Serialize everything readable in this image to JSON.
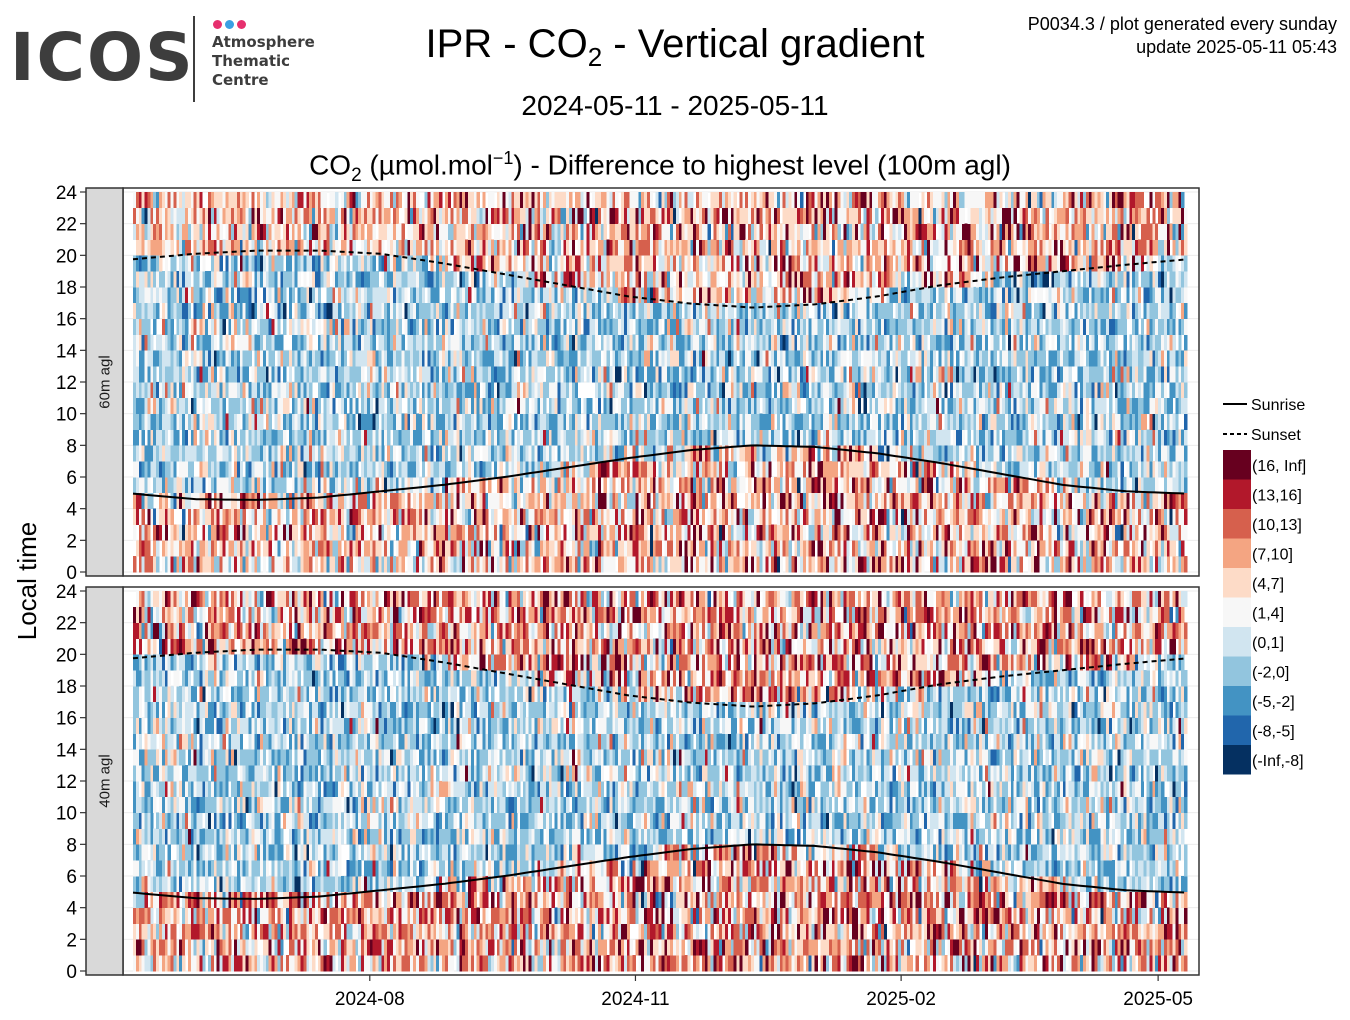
{
  "logo": {
    "text": "ICOS",
    "subtitle_lines": [
      "Atmosphere",
      "Thematic",
      "Centre"
    ],
    "dot_colors": [
      "#e6306e",
      "#3aa0e3",
      "#e6306e"
    ]
  },
  "header": {
    "title_main": "IPR - CO",
    "title_sub": "2",
    "title_rest": " - Vertical gradient",
    "date_range": "2024-05-11 - 2025-05-11",
    "subtitle_co": "CO",
    "subtitle_co_sub": "2",
    "subtitle_unit_pre": " (µmol.mol",
    "subtitle_unit_sup": "−1",
    "subtitle_rest": ") - Difference to highest level (100m agl)",
    "meta_line1": "P0034.3 / plot generated every sunday",
    "meta_line2": "update  2025-05-11 05:43"
  },
  "chart_data": {
    "type": "heatmap",
    "x_range": [
      "2024-05-11",
      "2025-05-11"
    ],
    "y_label": "Local time",
    "y_range": [
      0,
      24
    ],
    "y_ticks": [
      "0",
      "2",
      "4",
      "6",
      "8",
      "10",
      "12",
      "14",
      "16",
      "18",
      "20",
      "22",
      "24"
    ],
    "x_ticks": [
      {
        "date": "2024-08-01",
        "label": "2024-08"
      },
      {
        "date": "2024-11-01",
        "label": "2024-11"
      },
      {
        "date": "2025-02-01",
        "label": "2025-02"
      },
      {
        "date": "2025-05-01",
        "label": "2025-05"
      }
    ],
    "panels": [
      "60m agl",
      "40m agl"
    ],
    "sun_lines": [
      {
        "name": "Sunrise",
        "style": "solid",
        "hours": [
          [
            0,
            4.95
          ],
          [
            1,
            4.6
          ],
          [
            2,
            4.55
          ],
          [
            3,
            4.7
          ],
          [
            4,
            5.1
          ],
          [
            5,
            5.5
          ],
          [
            6,
            6.0
          ],
          [
            7,
            6.6
          ],
          [
            8,
            7.2
          ],
          [
            9,
            7.7
          ],
          [
            10,
            8.0
          ],
          [
            11,
            7.9
          ],
          [
            12,
            7.5
          ],
          [
            13,
            6.9
          ],
          [
            14,
            6.2
          ],
          [
            15,
            5.5
          ],
          [
            16,
            5.1
          ],
          [
            17,
            4.95
          ]
        ]
      },
      {
        "name": "Sunset",
        "style": "dashed",
        "hours": [
          [
            0,
            19.75
          ],
          [
            1,
            20.1
          ],
          [
            2,
            20.3
          ],
          [
            3,
            20.3
          ],
          [
            4,
            20.1
          ],
          [
            5,
            19.5
          ],
          [
            6,
            18.8
          ],
          [
            7,
            18.1
          ],
          [
            8,
            17.4
          ],
          [
            9,
            16.95
          ],
          [
            10,
            16.7
          ],
          [
            11,
            16.9
          ],
          [
            12,
            17.4
          ],
          [
            13,
            18.1
          ],
          [
            14,
            18.6
          ],
          [
            15,
            19.0
          ],
          [
            16,
            19.4
          ],
          [
            17,
            19.75
          ]
        ]
      }
    ],
    "legend": {
      "position": "right",
      "entries": [
        {
          "label": "(16, Inf]",
          "color": "#67001f"
        },
        {
          "label": "(13,16]",
          "color": "#b2182b"
        },
        {
          "label": "(10,13]",
          "color": "#d6604d"
        },
        {
          "label": "(7,10]",
          "color": "#f4a582"
        },
        {
          "label": "(4,7]",
          "color": "#fddbc7"
        },
        {
          "label": "(1,4]",
          "color": "#f7f7f7"
        },
        {
          "label": "(0,1]",
          "color": "#d1e5f0"
        },
        {
          "label": "(-2,0]",
          "color": "#92c5de"
        },
        {
          "label": "(-5,-2]",
          "color": "#4393c3"
        },
        {
          "label": "(-8,-5]",
          "color": "#2166ac"
        },
        {
          "label": "(-Inf,-8]",
          "color": "#053061"
        }
      ]
    }
  }
}
